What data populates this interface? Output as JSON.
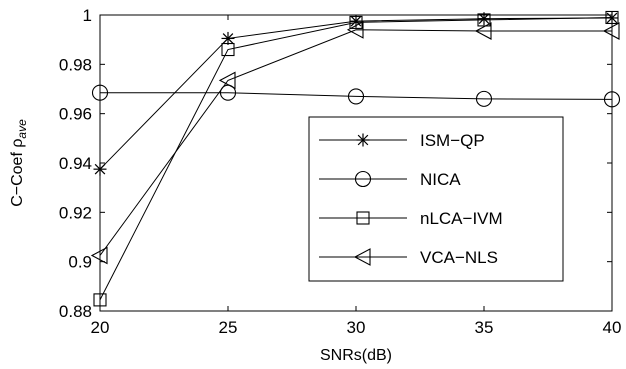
{
  "chart_data": {
    "type": "line",
    "title": "",
    "xlabel": "SNRs(dB)",
    "ylabel": {
      "prefix": "C−Coef ρ",
      "subscript": "ave"
    },
    "x": [
      20,
      25,
      30,
      35,
      40
    ],
    "xlim": [
      20,
      40
    ],
    "ylim": [
      0.88,
      1.0
    ],
    "xticks": [
      "20",
      "25",
      "30",
      "35",
      "40"
    ],
    "yticks": [
      "0.88",
      "0.9",
      "0.92",
      "0.94",
      "0.96",
      "0.98",
      "1"
    ],
    "grid": false,
    "legend_position": "center-right",
    "series": [
      {
        "name": "ISM−QP",
        "marker": "asterisk",
        "values": [
          0.9375,
          0.9905,
          0.9975,
          0.9985,
          0.9988
        ]
      },
      {
        "name": "NICA",
        "marker": "circle",
        "values": [
          0.9685,
          0.9685,
          0.967,
          0.966,
          0.9658
        ]
      },
      {
        "name": "nLCA−IVM",
        "marker": "square",
        "values": [
          0.8845,
          0.986,
          0.997,
          0.998,
          0.999
        ]
      },
      {
        "name": "VCA−NLS",
        "marker": "triangle-left",
        "values": [
          0.9025,
          0.9735,
          0.994,
          0.9935,
          0.9935
        ]
      }
    ]
  }
}
